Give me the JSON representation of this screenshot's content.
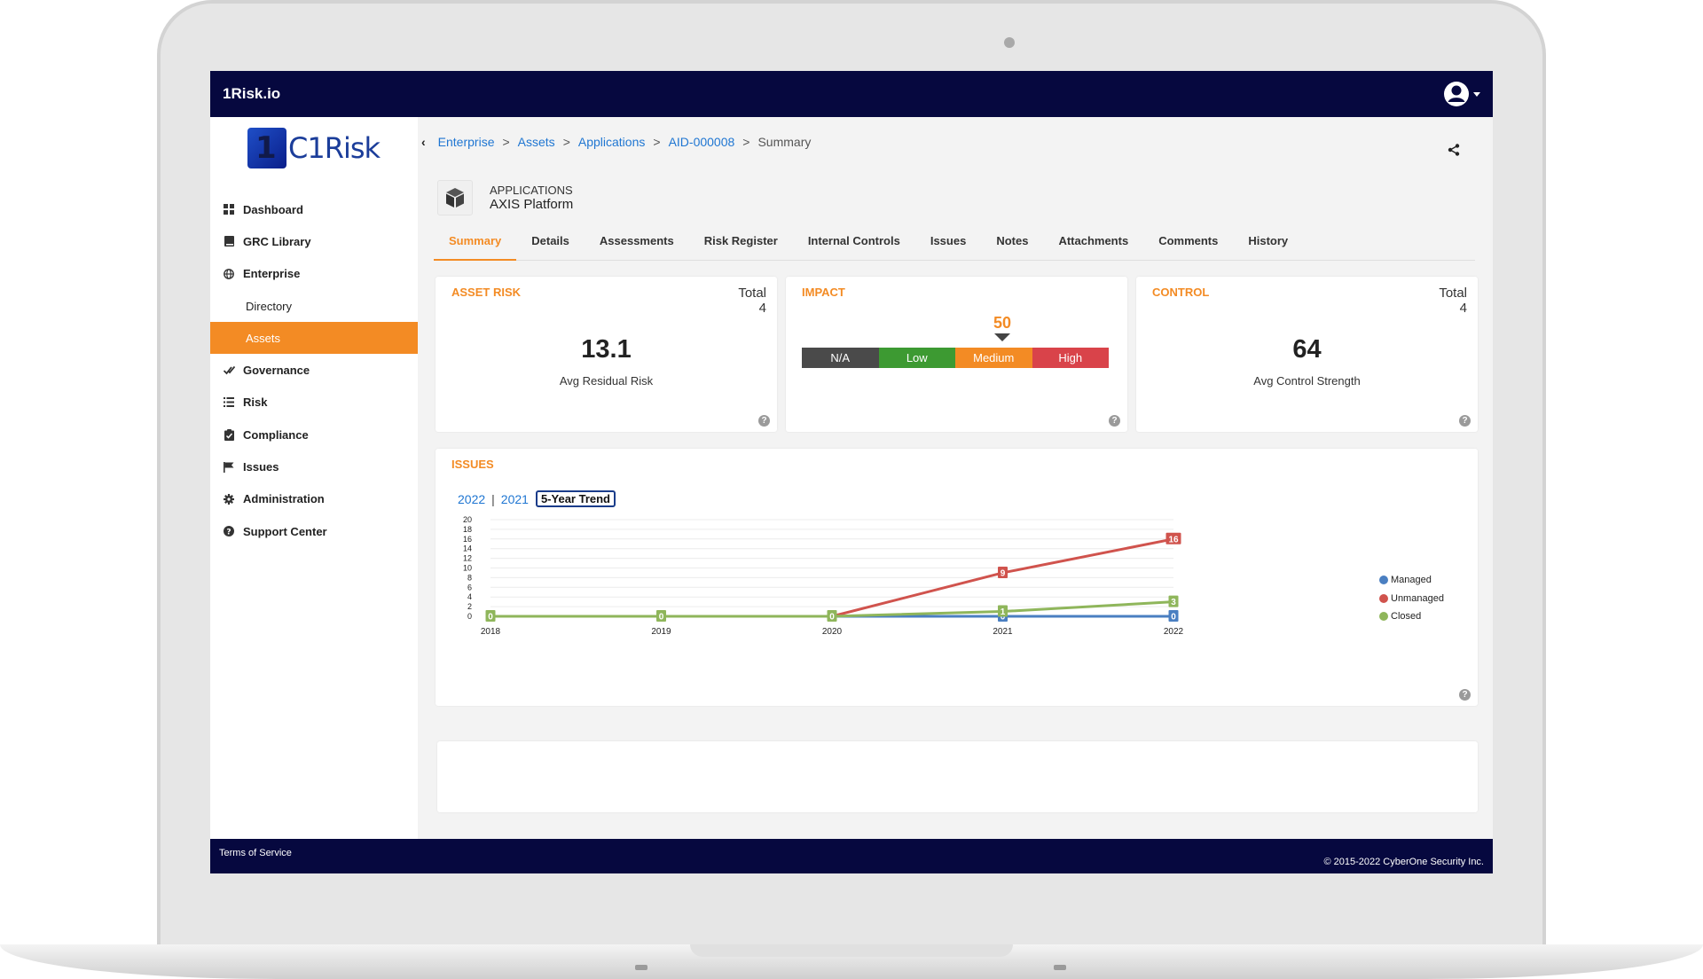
{
  "header": {
    "brand": "1Risk.io"
  },
  "sidebar": {
    "logo_text": "C1Risk",
    "logo_mark": "1",
    "items": [
      {
        "label": "Dashboard"
      },
      {
        "label": "GRC Library"
      },
      {
        "label": "Enterprise"
      },
      {
        "label": "Directory"
      },
      {
        "label": "Assets"
      },
      {
        "label": "Governance"
      },
      {
        "label": "Risk"
      },
      {
        "label": "Compliance"
      },
      {
        "label": "Issues"
      },
      {
        "label": "Administration"
      },
      {
        "label": "Support Center"
      }
    ]
  },
  "breadcrumb": {
    "items": [
      "Enterprise",
      "Assets",
      "Applications",
      "AID-000008"
    ],
    "current": "Summary",
    "separator": ">"
  },
  "page": {
    "kind": "APPLICATIONS",
    "name": "AXIS Platform"
  },
  "tabs": [
    "Summary",
    "Details",
    "Assessments",
    "Risk Register",
    "Internal Controls",
    "Issues",
    "Notes",
    "Attachments",
    "Comments",
    "History"
  ],
  "cards": {
    "asset_risk": {
      "title": "ASSET RISK",
      "total_label": "Total",
      "total": "4",
      "value": "13.1",
      "label": "Avg Residual Risk"
    },
    "impact": {
      "title": "IMPACT",
      "value": "50",
      "segments": [
        {
          "label": "N/A",
          "color": "#4a4a4a"
        },
        {
          "label": "Low",
          "color": "#3d9a32"
        },
        {
          "label": "Medium",
          "color": "#f38b24"
        },
        {
          "label": "High",
          "color": "#d9434a"
        }
      ]
    },
    "control": {
      "title": "CONTROL",
      "total_label": "Total",
      "total": "4",
      "value": "64",
      "label": "Avg Control Strength"
    }
  },
  "issues": {
    "title": "ISSUES",
    "years": [
      "2022",
      "2021"
    ],
    "trend_label": "5-Year Trend",
    "help": "?"
  },
  "chart_data": {
    "type": "line",
    "x": [
      "2018",
      "2019",
      "2020",
      "2021",
      "2022"
    ],
    "yticks": [
      "20",
      "18",
      "16",
      "14",
      "12",
      "10",
      "8",
      "6",
      "4",
      "2",
      "0"
    ],
    "ylim": [
      0,
      20
    ],
    "grid": true,
    "legend": "right",
    "series": [
      {
        "name": "Managed",
        "color": "#4a7fc1",
        "values": [
          0,
          0,
          0,
          0,
          0
        ],
        "labels": [
          null,
          null,
          null,
          "0",
          "0"
        ]
      },
      {
        "name": "Unmanaged",
        "color": "#d0534d",
        "values": [
          0,
          0,
          0,
          9,
          16
        ],
        "labels": [
          null,
          null,
          null,
          "9",
          "16"
        ]
      },
      {
        "name": "Closed",
        "color": "#8fb65b",
        "values": [
          0,
          0,
          0,
          1,
          3
        ],
        "labels": [
          "0",
          "0",
          "0",
          "1",
          "3"
        ]
      }
    ]
  },
  "footer": {
    "tos": "Terms of Service",
    "copyright": "© 2015-2022 CyberOne Security Inc."
  }
}
